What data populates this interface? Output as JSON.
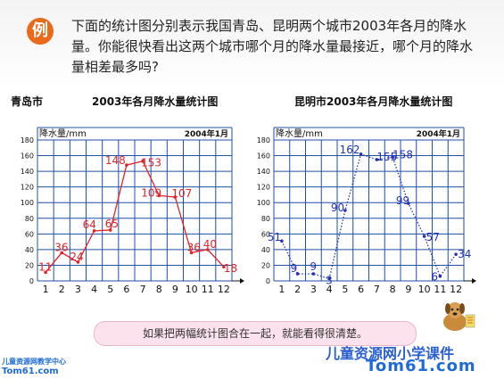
{
  "header": {
    "badge": "例",
    "question": "下面的统计图分别表示我国青岛、昆明两个城市2003年各月的降水量。你能很快看出这两个城市哪个月的降水量最接近，哪个月的降水量相差最多吗?"
  },
  "chart_data": [
    {
      "type": "line",
      "city": "青岛市",
      "title": "2003年各月降水量统计图",
      "ylabel": "降水量/mm",
      "date": "2004年1月",
      "categories": [
        "1",
        "2",
        "3",
        "4",
        "5",
        "6",
        "7",
        "8",
        "9",
        "10",
        "11",
        "12"
      ],
      "yticks": [
        "0",
        "20",
        "40",
        "60",
        "80",
        "100",
        "120",
        "140",
        "160",
        "180"
      ],
      "ylim": [
        0,
        180
      ],
      "values": [
        11,
        36,
        24,
        64,
        65,
        148,
        153,
        109,
        107,
        36,
        40,
        18
      ],
      "value_labels": [
        "11",
        "36",
        "24",
        "64",
        "65",
        "148",
        "153",
        "109",
        "107",
        "36",
        "40",
        "18"
      ],
      "color": "#e0242a",
      "line_style": "solid",
      "grid": true
    },
    {
      "type": "line",
      "city": "",
      "title": "昆明市2003年各月降水量统计图",
      "ylabel": "降水量/mm",
      "date": "2004年1月",
      "categories": [
        "1",
        "2",
        "3",
        "4",
        "5",
        "6",
        "7",
        "8",
        "9",
        "10",
        "11",
        "12"
      ],
      "yticks": [
        "0",
        "20",
        "40",
        "60",
        "80",
        "100",
        "120",
        "140",
        "160",
        "180"
      ],
      "ylim": [
        0,
        180
      ],
      "values": [
        51,
        9,
        9,
        3,
        90,
        162,
        155,
        158,
        99,
        57,
        6,
        34
      ],
      "value_labels": [
        "51",
        "9",
        "9",
        "3",
        "90",
        "162",
        "155",
        "158",
        "99",
        "57",
        "6",
        "34"
      ],
      "color": "#2532b8",
      "line_style": "dotted",
      "grid": true
    }
  ],
  "banner": {
    "text": "如果把两幅统计图合在一起，就能看得很清楚。"
  },
  "branding": {
    "right_name": "儿童资源网小学课件",
    "right_url": "Tom61.com",
    "left_name": "儿童资源网教学中心",
    "left_url": "Tom61.com"
  }
}
